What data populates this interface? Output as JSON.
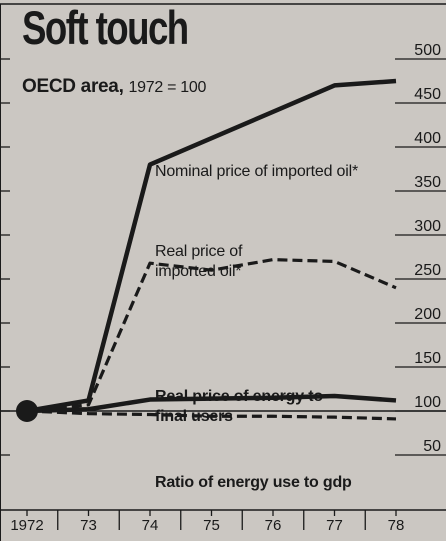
{
  "header": {
    "title": "Soft touch",
    "subtitle_main": "OECD area,",
    "subtitle_base": "1972 = 100"
  },
  "colors": {
    "background": "#cbc7c2",
    "ink": "#1a1a1a"
  },
  "chart_data": {
    "type": "line",
    "title": "Soft touch",
    "subtitle": "OECD area, 1972 = 100",
    "categories": [
      "1972",
      "73",
      "74",
      "75",
      "76",
      "77",
      "78"
    ],
    "ylim": [
      50,
      500
    ],
    "yticks": [
      "500",
      "450",
      "400",
      "350",
      "300",
      "250",
      "200",
      "150",
      "100",
      "50"
    ],
    "ytick_values": [
      500,
      450,
      400,
      350,
      300,
      250,
      200,
      150,
      100,
      50
    ],
    "yaxis_position": "right",
    "grid": false,
    "series": [
      {
        "name": "Nominal price of imported oil*",
        "style": "solid",
        "values": [
          100,
          112,
          380,
          410,
          440,
          470,
          475
        ]
      },
      {
        "name": "Real price of imported oil*",
        "style": "dashed",
        "values": [
          100,
          107,
          268,
          260,
          272,
          270,
          240
        ]
      },
      {
        "name": "Real price of energy to final users",
        "style": "solid",
        "values": [
          100,
          102,
          113,
          114,
          115,
          117,
          112
        ]
      },
      {
        "name": "Ratio of energy use to gdp",
        "style": "dashed",
        "values": [
          100,
          97,
          96,
          94,
          94,
          93,
          91
        ]
      }
    ],
    "annotations": [
      "Nominal price of imported oil*",
      "Real price of imported oil*",
      "Real price of energy to final users",
      "Ratio of energy use to gdp"
    ]
  }
}
